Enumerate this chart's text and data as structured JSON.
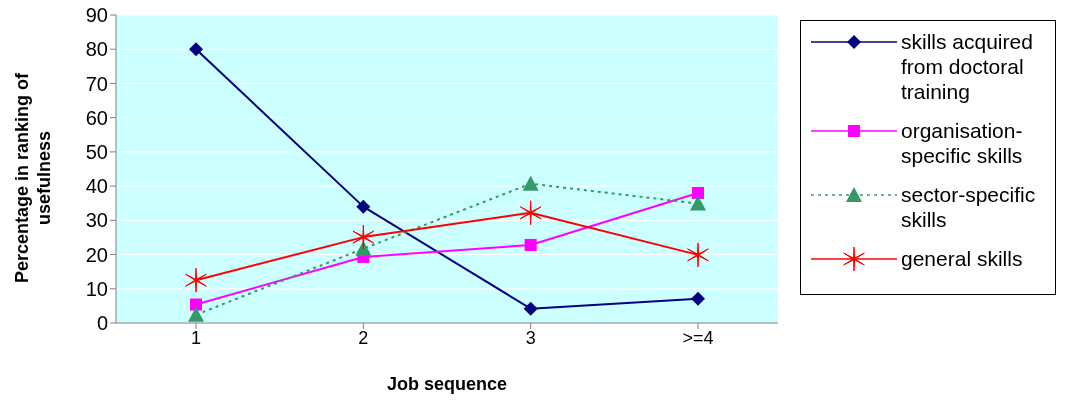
{
  "chart_data": {
    "type": "line",
    "xlabel": "Job sequence",
    "ylabel": "Percentage in ranking of usefulness",
    "categories": [
      "1",
      "2",
      "3",
      ">=4"
    ],
    "series": [
      {
        "name": "skills acquired from doctoral training",
        "color": "#000080",
        "values": [
          80,
          34,
          4.2,
          7.1
        ],
        "marker": "diamond",
        "line_style": "solid"
      },
      {
        "name": "organisation-specific skills",
        "color": "#ff00ff",
        "values": [
          5.4,
          19.3,
          22.8,
          38
        ],
        "marker": "square",
        "line_style": "solid"
      },
      {
        "name": "sector-specific skills",
        "color": "#339966",
        "values": [
          2.4,
          21.7,
          40.7,
          34.9
        ],
        "marker": "triangle",
        "line_style": "dotted"
      },
      {
        "name": "general skills",
        "color": "#ff0000",
        "values": [
          12.5,
          25.1,
          32.2,
          19.9
        ],
        "marker": "cross",
        "line_style": "solid"
      }
    ],
    "ylim": [
      0,
      90
    ],
    "yticks": [
      0,
      10,
      20,
      30,
      40,
      50,
      60,
      70,
      80,
      90
    ],
    "grid": "y",
    "legend": "right"
  }
}
